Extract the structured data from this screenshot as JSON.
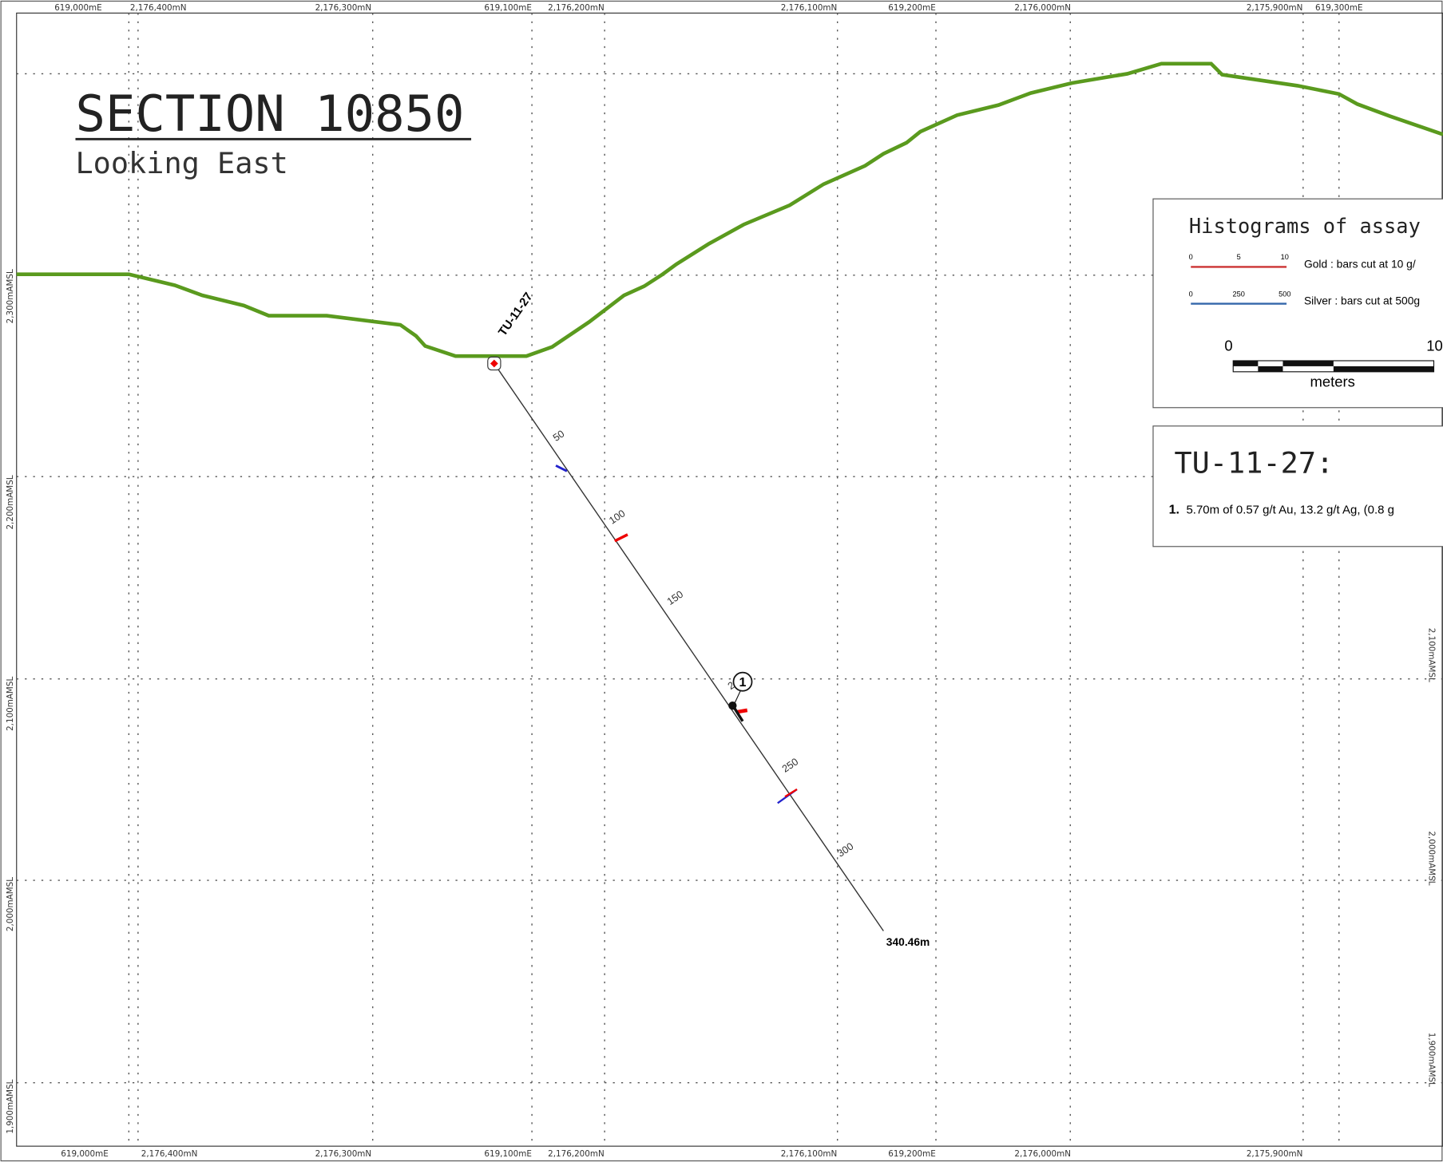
{
  "header": {
    "title": "SECTION 10850",
    "subtitle": "Looking East"
  },
  "grid": {
    "top_labels": [
      "619,000mE",
      "2,176,400mN",
      "2,176,300mN",
      "619,100mE",
      "2,176,200mN",
      "2,176,100mN",
      "619,200mE",
      "2,176,000mN",
      "2,175,900mN",
      "619,300mE"
    ],
    "bottom_labels": [
      "619,000mE",
      "2,176,400mN",
      "2,176,300mN",
      "619,100mE",
      "2,176,200mN",
      "2,176,100mN",
      "619,200mE",
      "2,176,000mN",
      "2,175,900mN"
    ],
    "left_labels": [
      "2,300mAMSL",
      "2,200mAMSL",
      "2,100mAMSL",
      "2,000mAMSL",
      "1,900mAMSL"
    ],
    "right_labels": [
      "2,100mAMSL",
      "2,000mAMSL",
      "1,900mAMSL"
    ]
  },
  "drillhole": {
    "name": "TU-11-27",
    "depth_labels": [
      "50",
      "100",
      "150",
      "2",
      "250",
      "300"
    ],
    "end_depth": "340.46m",
    "intercept_marker": "1"
  },
  "legend": {
    "title": "Histograms of assay",
    "gold_scale": [
      "0",
      "5",
      "10"
    ],
    "gold_text": "Gold :  bars cut at 10 g/",
    "silver_scale": [
      "0",
      "250",
      "500"
    ],
    "silver_text": "Silver : bars cut at 500g",
    "scale_labels": [
      "0",
      "10"
    ],
    "scale_unit": "meters"
  },
  "results": {
    "hole": "TU-11-27:",
    "items": [
      {
        "number": "1.",
        "text": "5.70m of 0.57 g/t Au, 13.2 g/t Ag, (0.8 g"
      }
    ]
  }
}
